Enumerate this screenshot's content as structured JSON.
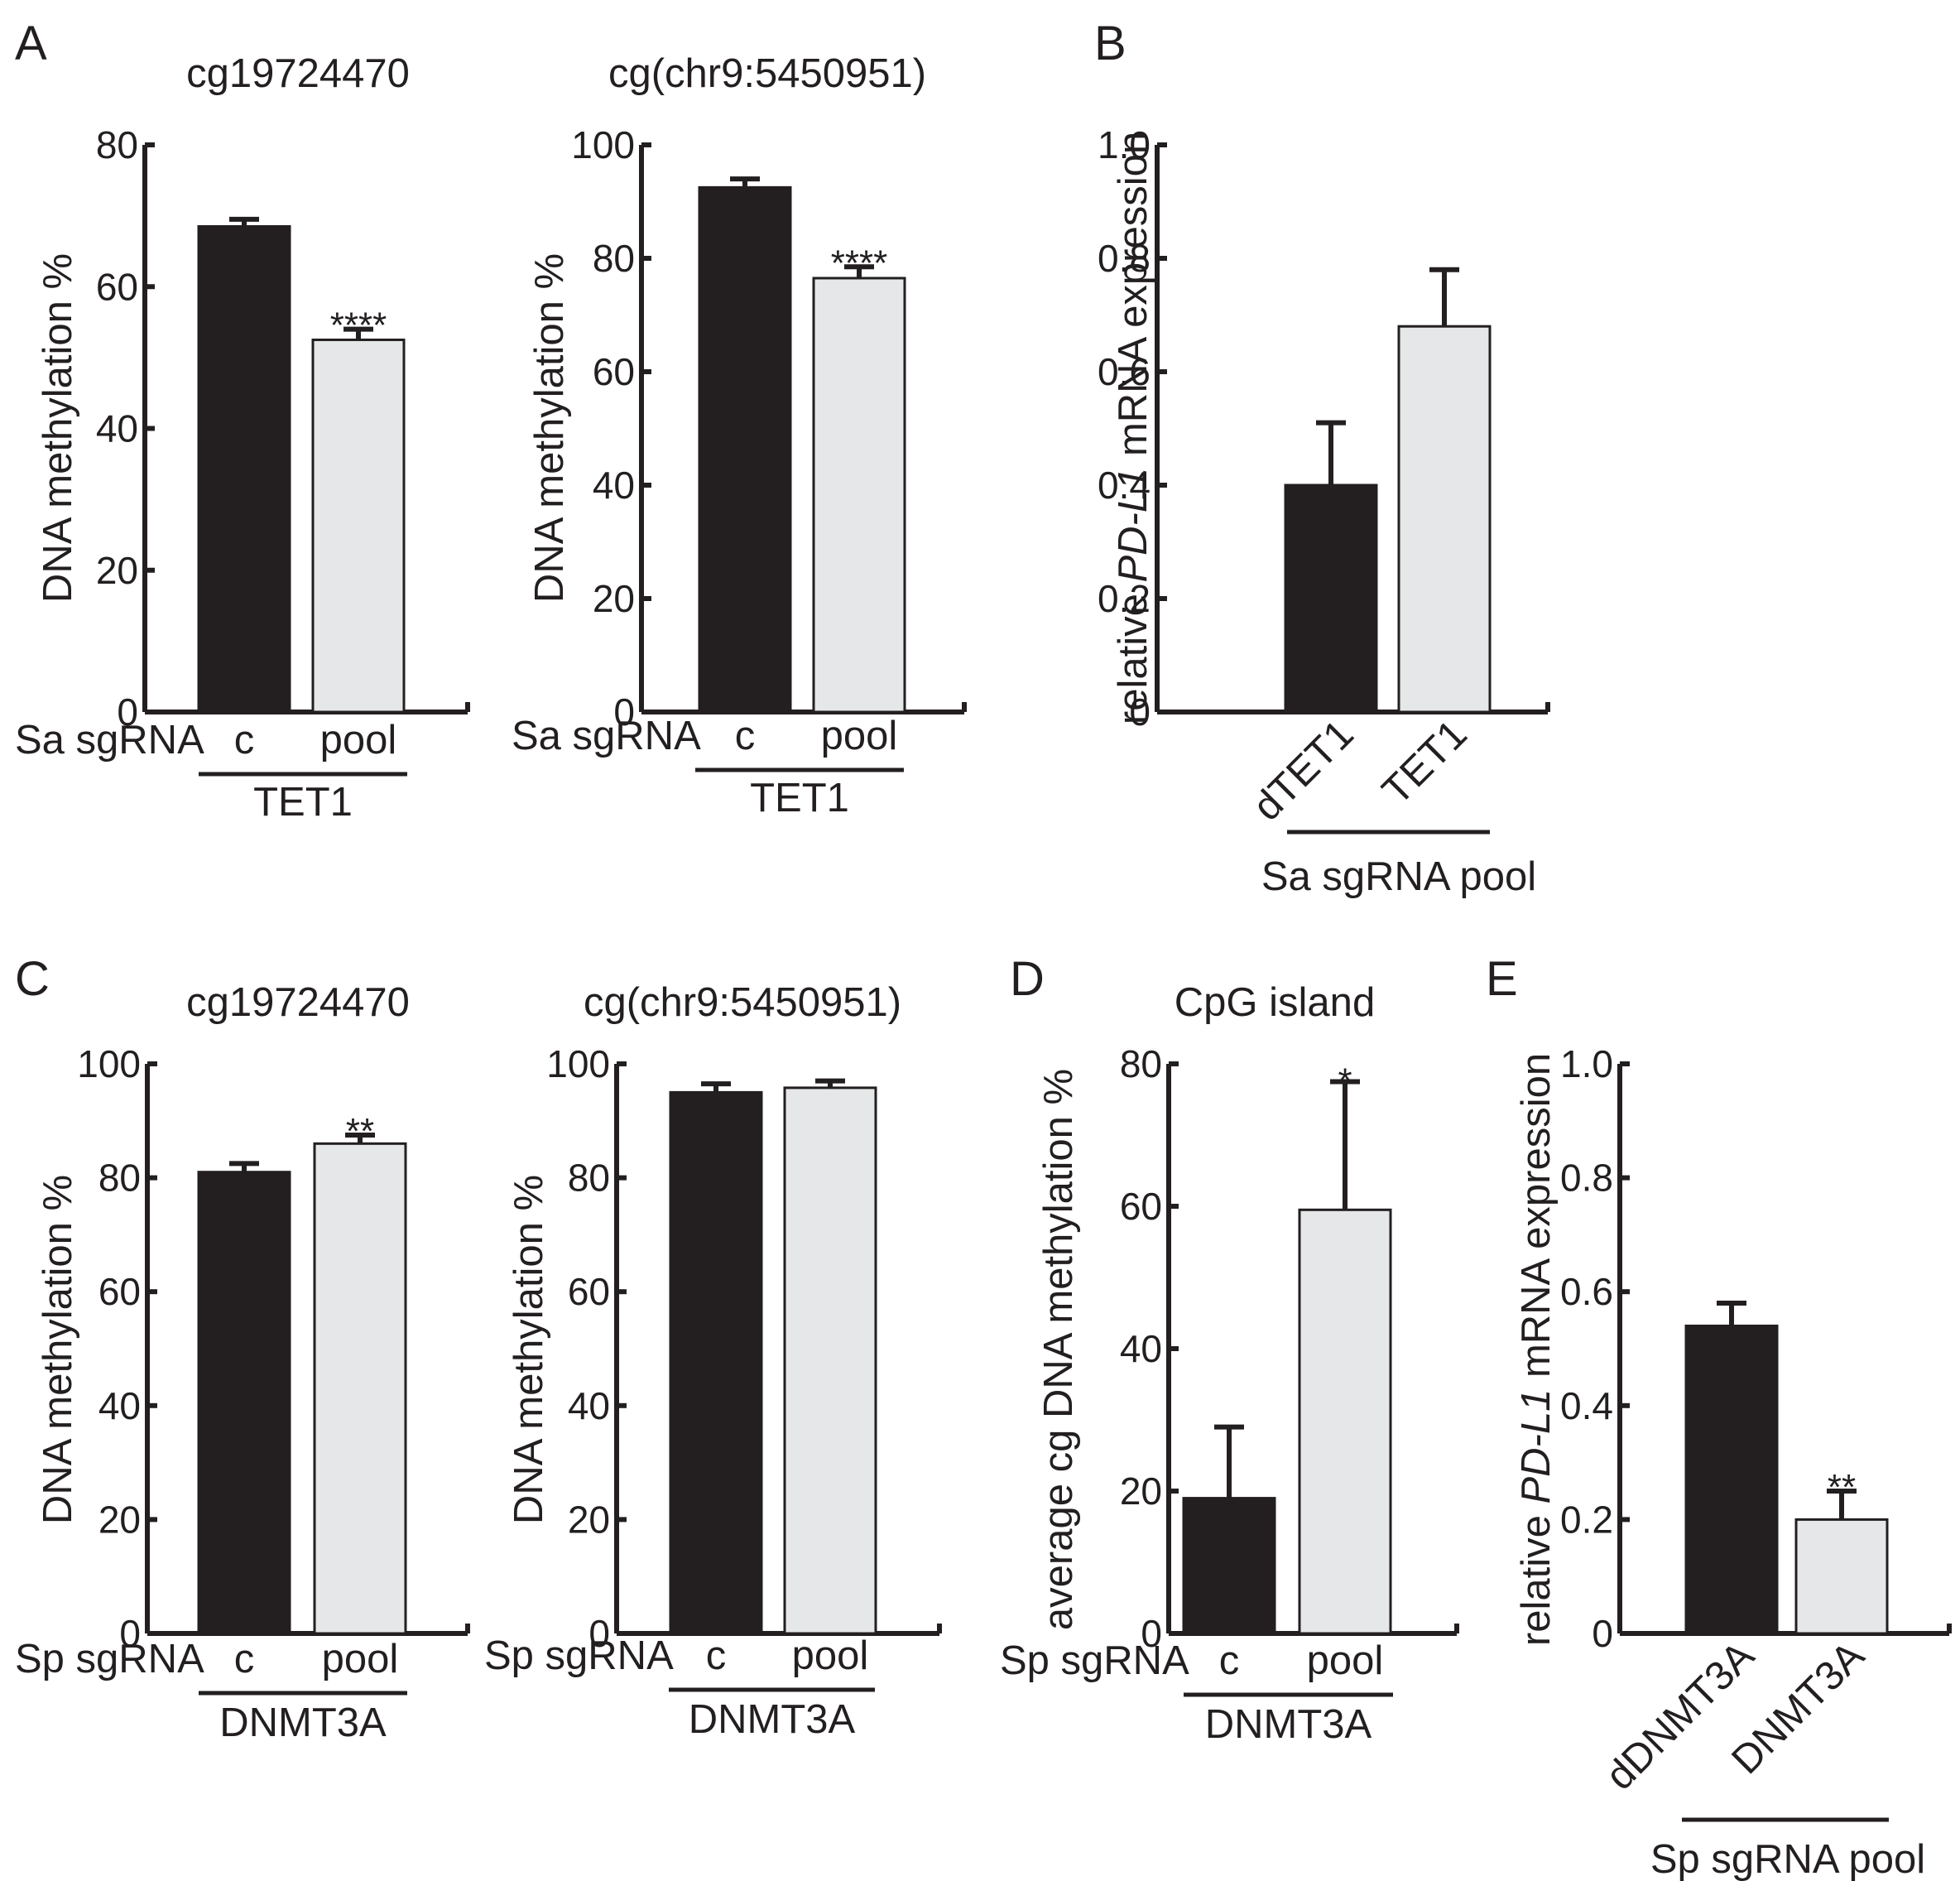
{
  "colors": {
    "control": "#231f20",
    "treated": "#e6e7e8",
    "stroke": "#231f20"
  },
  "panels": [
    {
      "letter": "A"
    },
    {
      "letter": "B"
    },
    {
      "letter": "C"
    },
    {
      "letter": "D"
    },
    {
      "letter": "E"
    }
  ],
  "chart_data": [
    {
      "type": "bar",
      "panel": "A",
      "title": "cg19724470",
      "ylabel": "DNA methylation %",
      "yticks": [
        "0",
        "20",
        "40",
        "60",
        "80"
      ],
      "ylim": [
        0,
        80
      ],
      "row_label": "Sa sgRNA",
      "categories": [
        "c",
        "pool"
      ],
      "group_label": "TET1",
      "values": [
        68.5,
        52.5
      ],
      "errors": [
        1.0,
        1.5
      ],
      "significance": [
        "",
        "****"
      ]
    },
    {
      "type": "bar",
      "panel": "A",
      "title": "cg(chr9:5450951)",
      "ylabel": "DNA methylation %",
      "yticks": [
        "0",
        "20",
        "40",
        "60",
        "80",
        "100"
      ],
      "ylim": [
        0,
        100
      ],
      "row_label": "Sa sgRNA",
      "categories": [
        "c",
        "pool"
      ],
      "group_label": "TET1",
      "values": [
        92.5,
        76.5
      ],
      "errors": [
        1.5,
        2.0
      ],
      "significance": [
        "",
        "****"
      ]
    },
    {
      "type": "bar",
      "panel": "B",
      "title": "",
      "ylabel_parts": [
        "relative ",
        "PD-L1",
        " mRNA expression"
      ],
      "yticks": [
        "0",
        "0.2",
        "0.4",
        "0.6",
        "0.8",
        "1.0"
      ],
      "ylim": [
        0,
        1.0
      ],
      "categories": [
        "dTET1",
        "TET1"
      ],
      "group_label": "Sa sgRNA pool",
      "values": [
        0.4,
        0.68
      ],
      "errors": [
        0.11,
        0.1
      ],
      "significance": [
        "",
        ""
      ]
    },
    {
      "type": "bar",
      "panel": "C",
      "title": "cg19724470",
      "ylabel": "DNA methylation %",
      "yticks": [
        "0",
        "20",
        "40",
        "60",
        "80",
        "100"
      ],
      "ylim": [
        0,
        100
      ],
      "row_label": "Sp sgRNA",
      "categories": [
        "c",
        "pool"
      ],
      "group_label": "DNMT3A",
      "values": [
        81,
        86
      ],
      "errors": [
        1.5,
        1.5
      ],
      "significance": [
        "",
        "**"
      ]
    },
    {
      "type": "bar",
      "panel": "C",
      "title": "cg(chr9:5450951)",
      "ylabel": "DNA methylation %",
      "yticks": [
        "0",
        "20",
        "40",
        "60",
        "80",
        "100"
      ],
      "ylim": [
        0,
        100
      ],
      "row_label": "Sp sgRNA",
      "categories": [
        "c",
        "pool"
      ],
      "group_label": "DNMT3A",
      "values": [
        95,
        95.8
      ],
      "errors": [
        1.5,
        1.2
      ],
      "significance": [
        "",
        ""
      ]
    },
    {
      "type": "bar",
      "panel": "D",
      "title": "CpG island",
      "ylabel": "average cg DNA methylation %",
      "yticks": [
        "0",
        "20",
        "40",
        "60",
        "80"
      ],
      "ylim": [
        0,
        80
      ],
      "row_label": "Sp sgRNA",
      "categories": [
        "c",
        "pool"
      ],
      "group_label": "DNMT3A",
      "values": [
        19,
        59.5
      ],
      "errors": [
        10,
        18
      ],
      "significance": [
        "",
        "*"
      ]
    },
    {
      "type": "bar",
      "panel": "E",
      "title": "",
      "ylabel_parts": [
        "relative ",
        "PD-L1",
        " mRNA expression"
      ],
      "yticks": [
        "0",
        "0.2",
        "0.4",
        "0.6",
        "0.8",
        "1.0"
      ],
      "ylim": [
        0,
        1.0
      ],
      "categories": [
        "dDNMT3A",
        "DNMT3A"
      ],
      "group_label": "Sp sgRNA pool",
      "values": [
        0.54,
        0.2
      ],
      "errors": [
        0.04,
        0.05
      ],
      "significance": [
        "",
        "**"
      ]
    }
  ]
}
